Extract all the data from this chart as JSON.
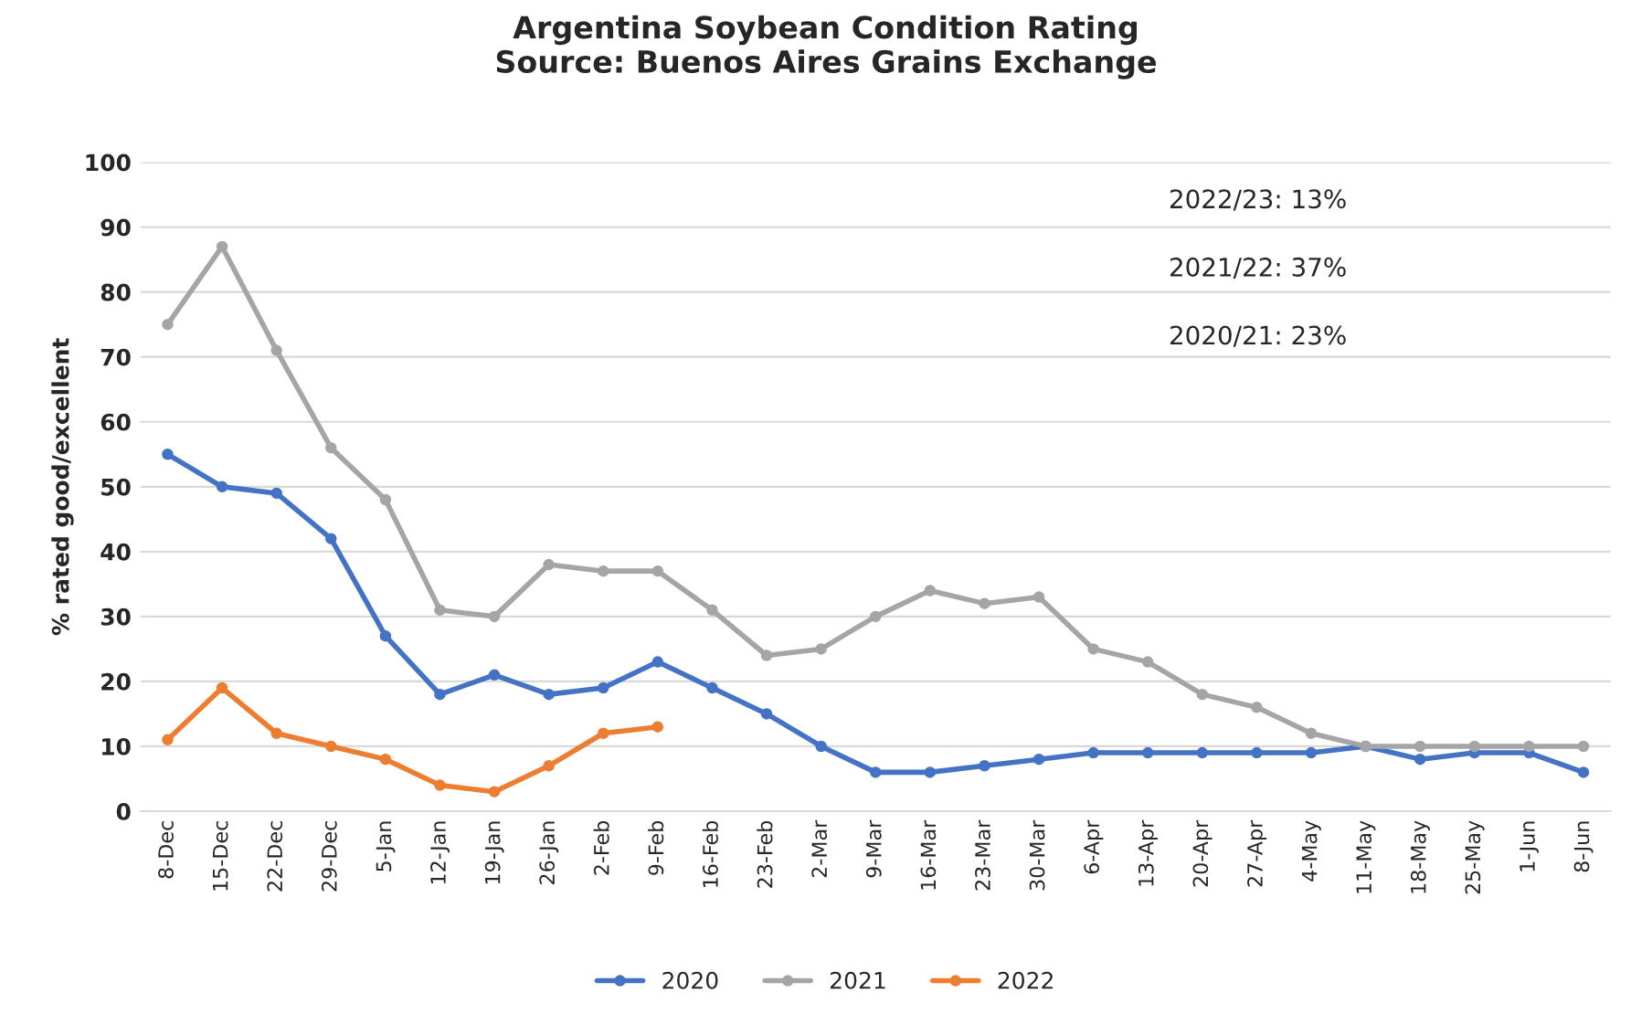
{
  "chart_data": {
    "type": "line",
    "title": "Argentina Soybean Condition Rating\nSource: Buenos Aires Grains Exchange",
    "ylabel": "% rated good/excellent",
    "categories": [
      "8-Dec",
      "15-Dec",
      "22-Dec",
      "29-Dec",
      "5-Jan",
      "12-Jan",
      "19-Jan",
      "26-Jan",
      "2-Feb",
      "9-Feb",
      "16-Feb",
      "23-Feb",
      "2-Mar",
      "9-Mar",
      "16-Mar",
      "23-Mar",
      "30-Mar",
      "6-Apr",
      "13-Apr",
      "20-Apr",
      "27-Apr",
      "4-May",
      "11-May",
      "18-May",
      "25-May",
      "1-Jun",
      "8-Jun"
    ],
    "series": [
      {
        "name": "2020",
        "color": "#4472c4",
        "values": [
          55,
          50,
          49,
          42,
          27,
          18,
          21,
          18,
          19,
          23,
          19,
          15,
          10,
          6,
          6,
          7,
          8,
          9,
          9,
          9,
          9,
          9,
          10,
          8,
          9,
          9,
          6
        ]
      },
      {
        "name": "2021",
        "color": "#a5a5a5",
        "values": [
          75,
          87,
          71,
          56,
          48,
          31,
          30,
          38,
          37,
          37,
          31,
          24,
          25,
          30,
          34,
          32,
          33,
          25,
          23,
          18,
          16,
          12,
          10,
          10,
          10,
          10,
          10
        ]
      },
      {
        "name": "2022",
        "color": "#ed7d31",
        "values": [
          11,
          19,
          12,
          10,
          8,
          4,
          3,
          7,
          12,
          13,
          null,
          null,
          null,
          null,
          null,
          null,
          null,
          null,
          null,
          null,
          null,
          null,
          null,
          null,
          null,
          null,
          null
        ]
      }
    ],
    "ylim": [
      0,
      100
    ],
    "yticks": [
      0,
      10,
      20,
      30,
      40,
      50,
      60,
      70,
      80,
      90,
      100
    ],
    "grid": "y",
    "legend": "bottom",
    "marker": "circle",
    "line_style": "solid",
    "annotations": [
      "2022/23: 13%",
      "2021/22: 37%",
      "2020/21: 23%"
    ]
  }
}
